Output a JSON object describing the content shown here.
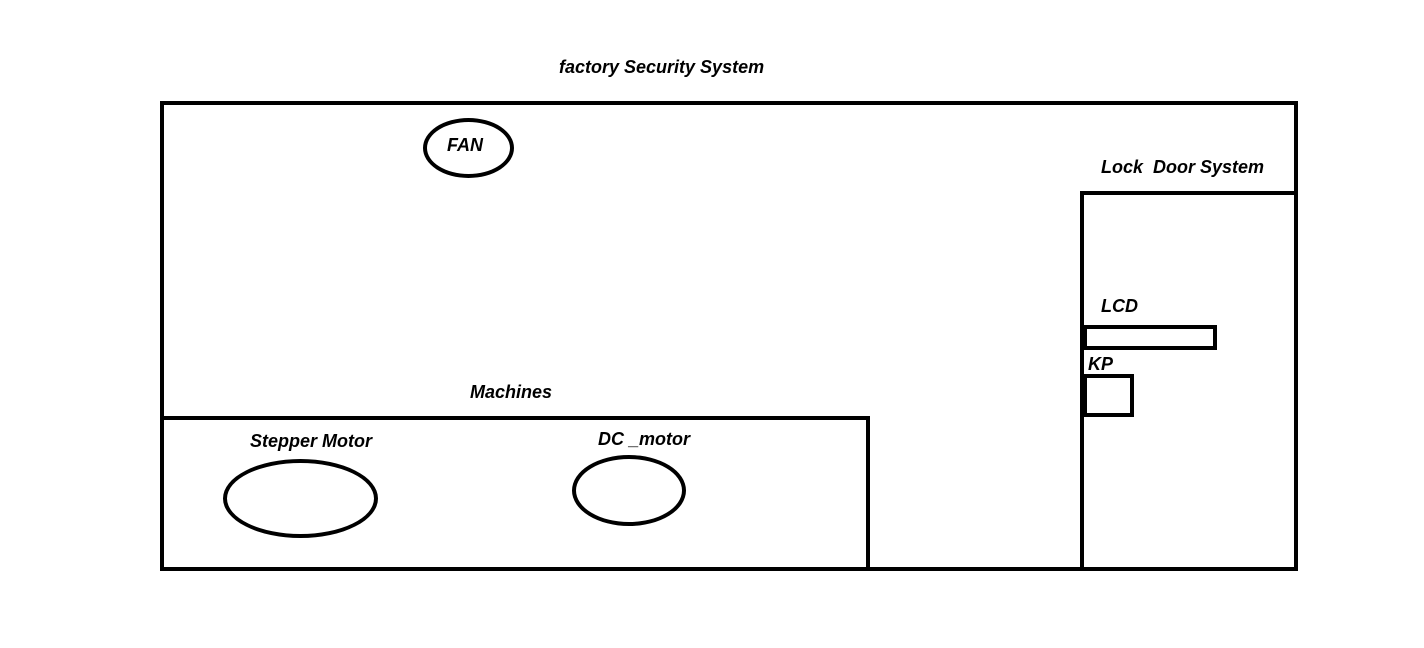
{
  "diagram": {
    "title": "factory Security System",
    "fan": {
      "label": "FAN"
    },
    "machines": {
      "label": "Machines",
      "stepper_motor": {
        "label": "Stepper Motor"
      },
      "dc_motor": {
        "label": "DC _motor"
      }
    },
    "lock_door_system": {
      "label": "Lock  Door System",
      "lcd": {
        "label": "LCD"
      },
      "keypad": {
        "label": "KP"
      }
    },
    "colors": {
      "stroke": "#000000",
      "background": "#ffffff"
    }
  }
}
